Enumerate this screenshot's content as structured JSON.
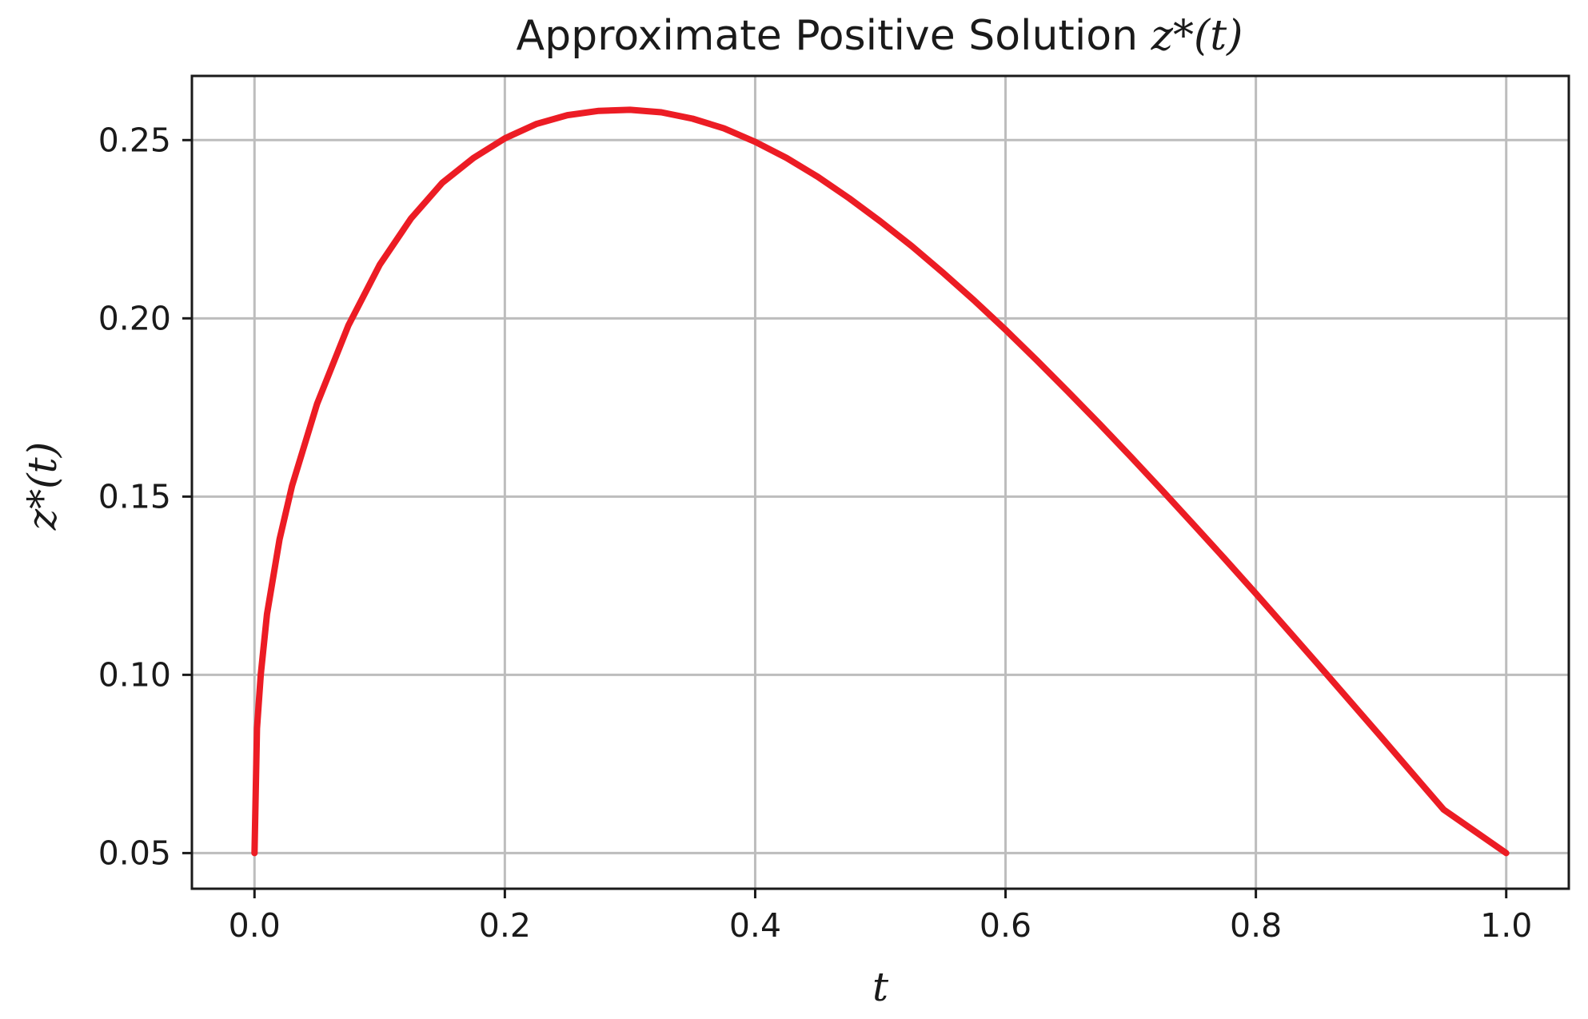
{
  "chart_data": {
    "type": "line",
    "title": {
      "prefix": "Approximate Positive Solution ",
      "math": "z*(t)"
    },
    "xlabel": "t",
    "ylabel": "z*(t)",
    "xlim": [
      -0.05,
      1.05
    ],
    "ylim": [
      0.04,
      0.268
    ],
    "xticks": [
      0.0,
      0.2,
      0.4,
      0.6,
      0.8,
      1.0
    ],
    "xtick_labels": [
      "0.0",
      "0.2",
      "0.4",
      "0.6",
      "0.8",
      "1.0"
    ],
    "yticks": [
      0.05,
      0.1,
      0.15,
      0.2,
      0.25
    ],
    "ytick_labels": [
      "0.05",
      "0.10",
      "0.15",
      "0.20",
      "0.25"
    ],
    "grid": true,
    "legend": "none",
    "series": [
      {
        "color": "#ec1c24",
        "x": [
          0.0,
          0.002,
          0.005,
          0.01,
          0.02,
          0.03,
          0.05,
          0.075,
          0.1,
          0.125,
          0.15,
          0.175,
          0.2,
          0.225,
          0.25,
          0.275,
          0.3,
          0.325,
          0.35,
          0.375,
          0.4,
          0.425,
          0.45,
          0.475,
          0.5,
          0.525,
          0.55,
          0.575,
          0.6,
          0.625,
          0.65,
          0.675,
          0.7,
          0.725,
          0.75,
          0.775,
          0.8,
          0.825,
          0.85,
          0.875,
          0.9,
          0.925,
          0.95,
          0.975,
          1.0
        ],
        "y": [
          0.05,
          0.085,
          0.1,
          0.117,
          0.138,
          0.153,
          0.176,
          0.198,
          0.215,
          0.228,
          0.238,
          0.245,
          0.2505,
          0.2545,
          0.257,
          0.2582,
          0.2585,
          0.2578,
          0.256,
          0.2533,
          0.2495,
          0.245,
          0.2397,
          0.2337,
          0.2272,
          0.2203,
          0.2128,
          0.205,
          0.1968,
          0.1882,
          0.1794,
          0.1704,
          0.1612,
          0.1518,
          0.1422,
          0.1326,
          0.1228,
          0.1128,
          0.1028,
          0.0927,
          0.0826,
          0.0724,
          0.0622,
          0.0561,
          0.05
        ]
      }
    ]
  }
}
